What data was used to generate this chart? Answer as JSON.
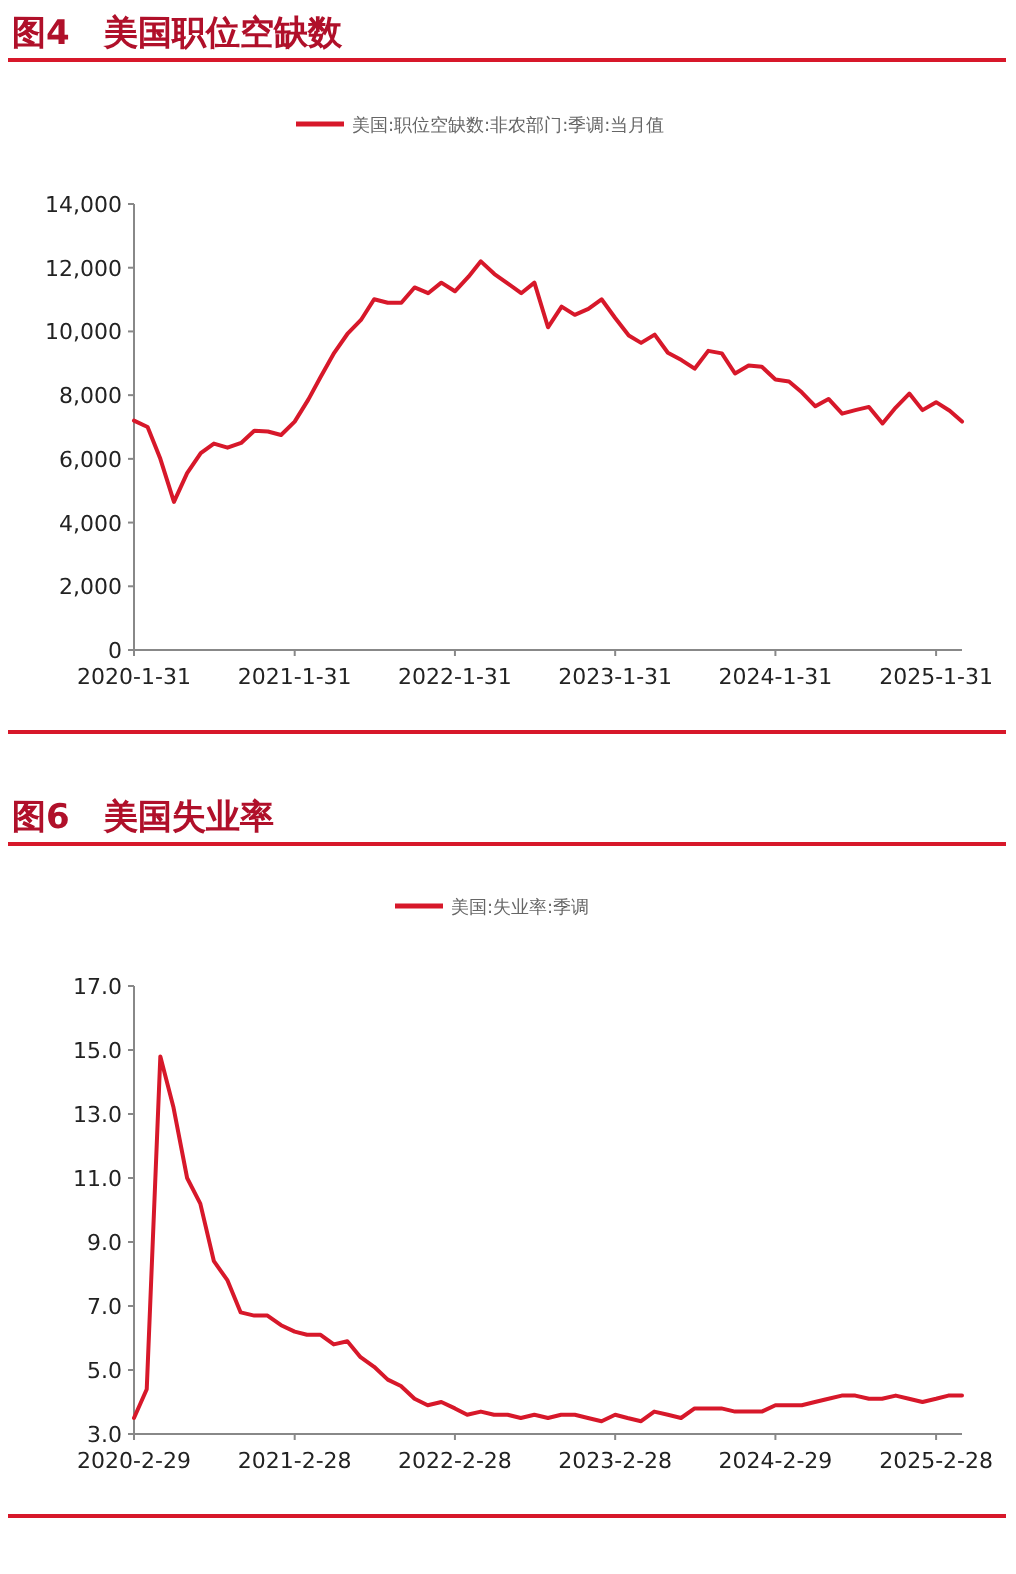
{
  "chart_data": [
    {
      "type": "line",
      "title": "图4　美国职位空缺数",
      "legend": "top",
      "x": [
        "2020-01",
        "2020-02",
        "2020-03",
        "2020-04",
        "2020-05",
        "2020-06",
        "2020-07",
        "2020-08",
        "2020-09",
        "2020-10",
        "2020-11",
        "2020-12",
        "2021-01",
        "2021-02",
        "2021-03",
        "2021-04",
        "2021-05",
        "2021-06",
        "2021-07",
        "2021-08",
        "2021-09",
        "2021-10",
        "2021-11",
        "2021-12",
        "2022-01",
        "2022-02",
        "2022-03",
        "2022-04",
        "2022-05",
        "2022-06",
        "2022-07",
        "2022-08",
        "2022-09",
        "2022-10",
        "2022-11",
        "2022-12",
        "2023-01",
        "2023-02",
        "2023-03",
        "2023-04",
        "2023-05",
        "2023-06",
        "2023-07",
        "2023-08",
        "2023-09",
        "2023-10",
        "2023-11",
        "2023-12",
        "2024-01",
        "2024-02",
        "2024-03",
        "2024-04",
        "2024-05",
        "2024-06",
        "2024-07",
        "2024-08",
        "2024-09",
        "2024-10",
        "2024-11",
        "2024-12",
        "2025-01",
        "2025-02",
        "2025-03"
      ],
      "series": [
        {
          "name": "美国:职位空缺数:非农部门:季调:当月值",
          "color": "#d7182a",
          "values": [
            7200,
            7000,
            6000,
            4650,
            5550,
            6180,
            6480,
            6350,
            6500,
            6880,
            6860,
            6750,
            7170,
            7860,
            8570,
            9330,
            9920,
            10360,
            11010,
            10900,
            10900,
            11380,
            11200,
            11530,
            11260,
            11720,
            12200,
            11800,
            11510,
            11200,
            11530,
            10130,
            10780,
            10520,
            10710,
            11010,
            10420,
            9870,
            9640,
            9900,
            9330,
            9100,
            8830,
            9390,
            9310,
            8680,
            8930,
            8890,
            8490,
            8430,
            8090,
            7650,
            7880,
            7420,
            7530,
            7630,
            7110,
            7610,
            8050,
            7530,
            7780,
            7510,
            7170
          ]
        }
      ],
      "xlim": [
        "2020-01",
        "2025-03"
      ],
      "xticks": [
        {
          "value": "2020-01",
          "label": "2020-1-31"
        },
        {
          "value": "2021-01",
          "label": "2021-1-31"
        },
        {
          "value": "2022-01",
          "label": "2022-1-31"
        },
        {
          "value": "2023-01",
          "label": "2023-1-31"
        },
        {
          "value": "2024-01",
          "label": "2024-1-31"
        },
        {
          "value": "2025-01",
          "label": "2025-1-31"
        }
      ],
      "ylim": [
        0,
        14000
      ],
      "yticks": [
        0,
        {
          "value": 2000,
          "label": "2,000"
        },
        {
          "value": 4000,
          "label": "4,000"
        },
        {
          "value": 6000,
          "label": "6,000"
        },
        {
          "value": 8000,
          "label": "8,000"
        },
        {
          "value": 10000,
          "label": "10,000"
        },
        {
          "value": 12000,
          "label": "12,000"
        },
        {
          "value": 14000,
          "label": "14,000"
        }
      ]
    },
    {
      "type": "line",
      "title": "图6　美国失业率",
      "legend": "top",
      "x": [
        "2020-02",
        "2020-03",
        "2020-04",
        "2020-05",
        "2020-06",
        "2020-07",
        "2020-08",
        "2020-09",
        "2020-10",
        "2020-11",
        "2020-12",
        "2021-01",
        "2021-02",
        "2021-03",
        "2021-04",
        "2021-05",
        "2021-06",
        "2021-07",
        "2021-08",
        "2021-09",
        "2021-10",
        "2021-11",
        "2021-12",
        "2022-01",
        "2022-02",
        "2022-03",
        "2022-04",
        "2022-05",
        "2022-06",
        "2022-07",
        "2022-08",
        "2022-09",
        "2022-10",
        "2022-11",
        "2022-12",
        "2023-01",
        "2023-02",
        "2023-03",
        "2023-04",
        "2023-05",
        "2023-06",
        "2023-07",
        "2023-08",
        "2023-09",
        "2023-10",
        "2023-11",
        "2023-12",
        "2024-01",
        "2024-02",
        "2024-03",
        "2024-04",
        "2024-05",
        "2024-06",
        "2024-07",
        "2024-08",
        "2024-09",
        "2024-10",
        "2024-11",
        "2024-12",
        "2025-01",
        "2025-02",
        "2025-03",
        "2025-04"
      ],
      "series": [
        {
          "name": "美国:失业率:季调",
          "color": "#d7182a",
          "values": [
            3.5,
            4.4,
            14.8,
            13.2,
            11.0,
            10.2,
            8.4,
            7.8,
            6.8,
            6.7,
            6.7,
            6.4,
            6.2,
            6.1,
            6.1,
            5.8,
            5.9,
            5.4,
            5.1,
            4.7,
            4.5,
            4.1,
            3.9,
            4.0,
            3.8,
            3.6,
            3.7,
            3.6,
            3.6,
            3.5,
            3.6,
            3.5,
            3.6,
            3.6,
            3.5,
            3.4,
            3.6,
            3.5,
            3.4,
            3.7,
            3.6,
            3.5,
            3.8,
            3.8,
            3.8,
            3.7,
            3.7,
            3.7,
            3.9,
            3.9,
            3.9,
            4.0,
            4.1,
            4.2,
            4.2,
            4.1,
            4.1,
            4.2,
            4.1,
            4.0,
            4.1,
            4.2,
            4.2
          ]
        }
      ],
      "xlim": [
        "2020-02",
        "2025-04"
      ],
      "xticks": [
        {
          "value": "2020-02",
          "label": "2020-2-29"
        },
        {
          "value": "2021-02",
          "label": "2021-2-28"
        },
        {
          "value": "2022-02",
          "label": "2022-2-28"
        },
        {
          "value": "2023-02",
          "label": "2023-2-28"
        },
        {
          "value": "2024-02",
          "label": "2024-2-29"
        },
        {
          "value": "2025-02",
          "label": "2025-2-28"
        }
      ],
      "ylim": [
        3,
        17
      ],
      "yticks": [
        {
          "value": 3,
          "label": "3.0"
        },
        {
          "value": 5,
          "label": "5.0"
        },
        {
          "value": 7,
          "label": "7.0"
        },
        {
          "value": 9,
          "label": "9.0"
        },
        {
          "value": 11,
          "label": "11.0"
        },
        {
          "value": 13,
          "label": "13.0"
        },
        {
          "value": 15,
          "label": "15.0"
        },
        {
          "value": 17,
          "label": "17.0"
        }
      ]
    }
  ]
}
